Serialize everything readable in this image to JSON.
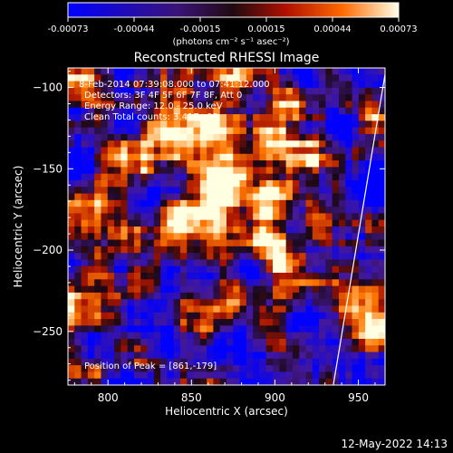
{
  "chart_data": {
    "type": "heatmap",
    "title": "Reconstructed RHESSI Image",
    "xlabel": "Heliocentric X (arcsec)",
    "ylabel": "Heliocentric Y (arcsec)",
    "xlim": [
      776,
      966
    ],
    "ylim": [
      -283,
      -88
    ],
    "xticks": [
      800,
      850,
      900,
      950
    ],
    "yticks": [
      -100,
      -150,
      -200,
      -250
    ],
    "colorbar": {
      "min": -0.00073,
      "max": 0.00073,
      "ticks": [
        "-0.00073",
        "-0.00044",
        "-0.00015",
        "0.00015",
        "0.00044",
        "0.00073"
      ],
      "units_label": "(photons cm⁻² s⁻¹ asec⁻²)"
    },
    "annotations": [
      "8-Feb-2014 07:39:08.000 to 07:41:12.000",
      "Detectors: 3F 4F 5F 6F 7F 8F, Att 0",
      "Energy Range: 12.0 - 25.0 keV",
      "Clean    Total counts: 3.41E+03"
    ],
    "peak_label": "Position of Peak = [861,-179]",
    "peak": [
      861,
      -179
    ],
    "limb_line": [
      [
        935,
        -283
      ],
      [
        966,
        -92
      ]
    ],
    "bright_sources": [
      {
        "x": 861,
        "y": -179,
        "value": 0.00073
      },
      {
        "x": 838,
        "y": -134,
        "value": 0.0005
      },
      {
        "x": 880,
        "y": -150,
        "value": 0.00045
      },
      {
        "x": 910,
        "y": -140,
        "value": 0.0004
      },
      {
        "x": 903,
        "y": -193,
        "value": 0.00035
      }
    ]
  },
  "timestamp": "12-May-2022 14:13"
}
